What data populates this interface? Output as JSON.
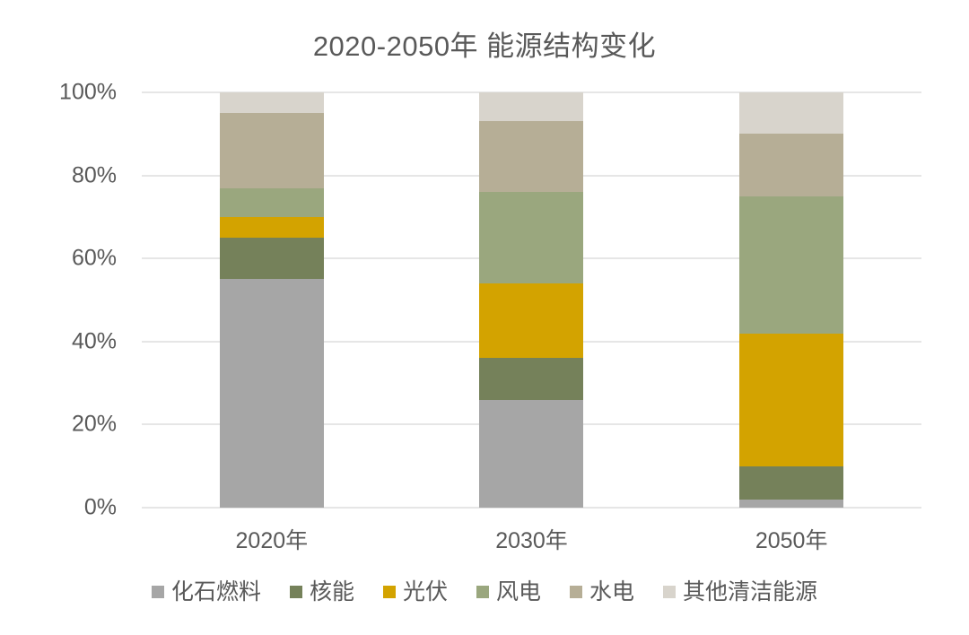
{
  "chart_data": {
    "type": "bar",
    "stacked": true,
    "title": "2020-2050年 能源结构变化",
    "categories": [
      "2020年",
      "2030年",
      "2050年"
    ],
    "series": [
      {
        "name": "化石燃料",
        "color": "#A6A6A6",
        "values": [
          55,
          26,
          2
        ]
      },
      {
        "name": "核能",
        "color": "#75815A",
        "values": [
          10,
          10,
          8
        ]
      },
      {
        "name": "光伏",
        "color": "#D3A300",
        "values": [
          5,
          18,
          32
        ]
      },
      {
        "name": "风电",
        "color": "#9AA77E",
        "values": [
          7,
          22,
          33
        ]
      },
      {
        "name": "水电",
        "color": "#B6AE96",
        "values": [
          18,
          17,
          15
        ]
      },
      {
        "name": "其他清洁能源",
        "color": "#D8D4CC",
        "values": [
          5,
          7,
          10
        ]
      }
    ],
    "xlabel": "",
    "ylabel": "",
    "unit": "%",
    "ylim": [
      0,
      100
    ],
    "yticks": [
      {
        "value": 0,
        "label": "0%"
      },
      {
        "value": 20,
        "label": "20%"
      },
      {
        "value": 40,
        "label": "40%"
      },
      {
        "value": 60,
        "label": "60%"
      },
      {
        "value": 80,
        "label": "80%"
      },
      {
        "value": 100,
        "label": "100%"
      }
    ],
    "grid": true,
    "legend_position": "bottom"
  },
  "styles": {
    "background": "#FFFFFF",
    "text_color": "#595959",
    "grid_color": "#E6E6E6"
  }
}
